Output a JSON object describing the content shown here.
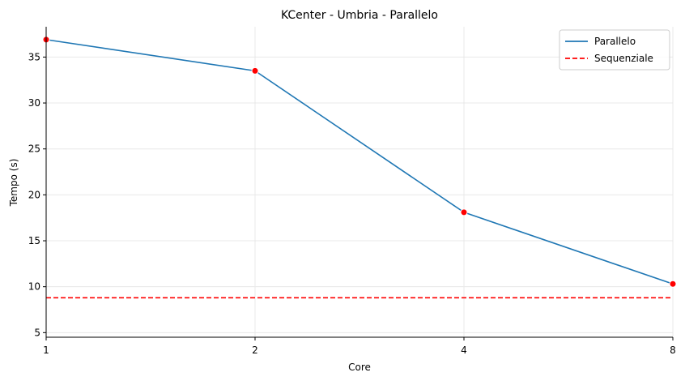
{
  "chart_data": {
    "type": "line",
    "title": "KCenter - Umbria - Parallelo",
    "xlabel": "Core",
    "ylabel": "Tempo (s)",
    "x": [
      1,
      2,
      4,
      8
    ],
    "x_tick_labels": [
      "1",
      "2",
      "4",
      "8"
    ],
    "x_scale": "log2",
    "xlim": [
      1,
      8
    ],
    "ylim": [
      4.5,
      38.3
    ],
    "y_ticks": [
      5,
      10,
      15,
      20,
      25,
      30,
      35
    ],
    "grid": true,
    "legend_position": "top-right",
    "series": [
      {
        "name": "Parallelo",
        "values": [
          36.9,
          33.5,
          18.1,
          10.3
        ],
        "color": "#1f77b4",
        "marker_color": "#ff0000",
        "line_style": "solid"
      },
      {
        "name": "Sequenziale",
        "constant": 8.8,
        "color": "#ff0000",
        "line_style": "dashed"
      }
    ]
  }
}
